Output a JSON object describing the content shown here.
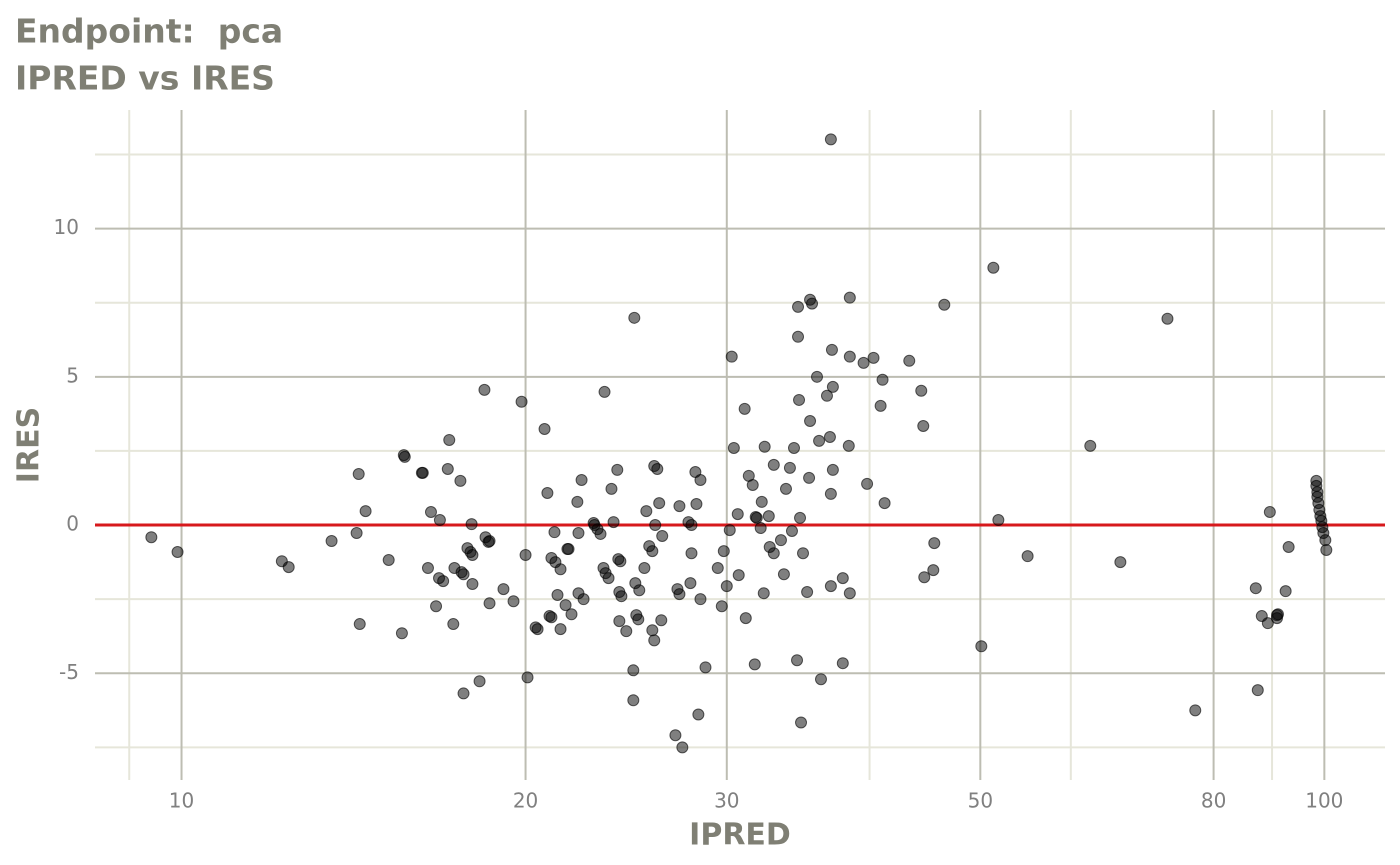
{
  "chart_data": {
    "type": "scatter",
    "title": "Endpoint:  pca",
    "subtitle": "IPRED vs IRES",
    "x_label": "IPRED",
    "y_label": "IRES",
    "xscale": "log",
    "grid": true,
    "xlim": [
      8.4,
      113
    ],
    "xticks": [
      10,
      20,
      30,
      50,
      80,
      100
    ],
    "xminorticks": [
      9,
      40,
      60,
      90
    ],
    "ylim": [
      -8.6,
      14
    ],
    "yticks": [
      -5,
      0,
      5,
      10
    ],
    "yminorticks": [
      -7.5,
      -2.5,
      2.5,
      7.5,
      12.5
    ],
    "color": "#000000",
    "reference_line": {
      "y": 0,
      "color": "#d7191c"
    },
    "x": [
      9.41,
      9.92,
      12.24,
      12.41,
      13.53,
      14.23,
      14.29,
      14.49,
      14.32,
      15.18,
      15.59,
      15.65,
      15.68,
      16.23,
      16.26,
      16.43,
      16.53,
      16.7,
      16.83,
      16.8,
      16.94,
      17.1,
      17.15,
      17.29,
      17.33,
      17.54,
      17.58,
      17.65,
      17.65,
      17.79,
      17.9,
      17.97,
      17.94,
      17.97,
      18.23,
      18.41,
      18.45,
      18.56,
      18.6,
      18.6,
      19.13,
      19.52,
      19.84,
      20,
      20.08,
      20.41,
      20.49,
      20.78,
      20.9,
      20.99,
      21.07,
      21.07,
      21.2,
      21.24,
      21.33,
      21.46,
      21.46,
      21.68,
      21.76,
      21.81,
      21.94,
      22.2,
      22.25,
      22.25,
      22.39,
      22.48,
      22.94,
      22.98,
      23.12,
      23.26,
      23.4,
      23.45,
      23.5,
      23.64,
      23.78,
      23.88,
      24.06,
      24.11,
      24.16,
      24.16,
      24.21,
      24.26,
      24.5,
      24.85,
      24.85,
      24.9,
      24.95,
      25,
      25.1,
      25.15,
      25.41,
      25.51,
      25.66,
      25.82,
      25.82,
      25.92,
      25.92,
      25.97,
      26.08,
      26.18,
      26.29,
      26.34,
      27.05,
      27.16,
      27.27,
      27.27,
      27.43,
      27.77,
      27.88,
      27.94,
      27.94,
      28.16,
      28.22,
      28.33,
      28.45,
      28.45,
      28.74,
      29.46,
      29.7,
      29.82,
      30,
      30.18,
      30.3,
      30.43,
      30.67,
      30.73,
      31.1,
      31.17,
      31.36,
      31.61,
      31.74,
      31.8,
      31.87,
      32.12,
      32.19,
      32.32,
      32.38,
      32.65,
      32.71,
      32.98,
      32.98,
      33.46,
      33.66,
      33.8,
      34.07,
      34.21,
      34.35,
      34.56,
      34.63,
      34.63,
      34.7,
      34.77,
      34.84,
      34.98,
      35.27,
      35.41,
      35.48,
      35.48,
      35.62,
      35.98,
      36.13,
      36.27,
      36.71,
      36.93,
      37,
      37,
      37.08,
      37.15,
      37.15,
      37,
      37.9,
      37.9,
      38.36,
      38.44,
      38.44,
      38.44,
      39.8,
      39.52,
      40.32,
      40.9,
      41.06,
      41.23,
      43.33,
      44.39,
      44.57,
      44.66,
      45.57,
      45.48,
      46.5,
      50.1,
      51.33,
      51.85,
      55,
      62.4,
      66.3,
      72.9,
      77.1,
      87.1,
      87.45,
      88.16,
      89.24,
      89.6,
      90.9,
      90.9,
      91.08,
      92.5,
      93.06,
      98.4,
      98.4,
      98.6,
      98.6,
      98.8,
      99,
      99.2,
      99.4,
      99.6,
      99.8,
      100.2,
      100.4
    ],
    "values": [
      -0.41,
      -0.91,
      -1.22,
      -1.42,
      -0.54,
      -0.27,
      1.72,
      0.47,
      -3.34,
      -1.18,
      -3.65,
      2.36,
      2.3,
      1.76,
      1.76,
      -1.45,
      0.44,
      -2.74,
      0.17,
      -1.79,
      -1.89,
      1.89,
      2.87,
      -3.34,
      -1.45,
      1.49,
      -1.59,
      -1.66,
      -5.68,
      -0.78,
      -0.91,
      -1.01,
      0.03,
      -1.99,
      -5.27,
      4.56,
      -0.41,
      -0.57,
      -2.64,
      -0.54,
      -2.16,
      -2.57,
      4.16,
      -1.01,
      -5.14,
      -3.45,
      -3.51,
      3.24,
      1.08,
      -3.07,
      -3.11,
      -1.11,
      -0.24,
      -1.25,
      -2.36,
      -1.49,
      -3.51,
      -2.7,
      -0.81,
      -0.81,
      -3.01,
      0.78,
      -2.3,
      -0.27,
      1.52,
      -2.5,
      0.07,
      0,
      -0.14,
      -0.3,
      -1.45,
      4.49,
      -1.62,
      -1.79,
      1.22,
      0.1,
      1.86,
      -1.15,
      -3.24,
      -2.26,
      -1.22,
      -2.4,
      -3.58,
      -4.9,
      -5.91,
      6.99,
      -1.96,
      -3.04,
      -3.18,
      -2.2,
      -1.45,
      0.47,
      -0.71,
      -3.55,
      -0.88,
      -3.89,
      1.99,
      0,
      1.89,
      0.74,
      -3.21,
      -0.37,
      -7.09,
      -2.16,
      -2.33,
      0.64,
      -7.5,
      0.1,
      -1.96,
      -0.95,
      0,
      1.79,
      0.71,
      -6.39,
      1.52,
      -2.5,
      -4.8,
      -1.45,
      -2.74,
      -0.88,
      -2.06,
      -0.17,
      5.68,
      2.6,
      0.37,
      -1.69,
      3.92,
      -3.14,
      1.66,
      1.35,
      -4.7,
      0.27,
      0.24,
      -0.1,
      0.78,
      -2.3,
      2.64,
      0.3,
      -0.74,
      -0.95,
      2.03,
      -0.51,
      -1.66,
      1.22,
      1.93,
      -0.2,
      2.6,
      -4.56,
      7.36,
      6.35,
      4.22,
      0.24,
      -6.66,
      -0.95,
      -2.26,
      1.59,
      3.51,
      7.6,
      7.47,
      5,
      2.84,
      -5.2,
      4.36,
      2.97,
      1.05,
      -2.06,
      5.91,
      1.86,
      4.66,
      13.01,
      -1.79,
      -4.66,
      2.67,
      7.67,
      5.68,
      -2.3,
      1.39,
      5.47,
      5.64,
      4.02,
      4.9,
      0.74,
      5.54,
      4.53,
      3.34,
      -1.76,
      -0.61,
      -1.52,
      7.43,
      -4.09,
      8.68,
      0.17,
      -1.05,
      2.67,
      -1.25,
      6.96,
      -6.25,
      -2.13,
      -5.57,
      -3.07,
      -3.31,
      0.44,
      -3.04,
      -3.14,
      -3.01,
      -2.23,
      -0.74,
      1.49,
      1.32,
      1.11,
      0.95,
      0.74,
      0.51,
      0.3,
      0.14,
      -0.07,
      -0.27,
      -0.51,
      -0.84
    ]
  }
}
